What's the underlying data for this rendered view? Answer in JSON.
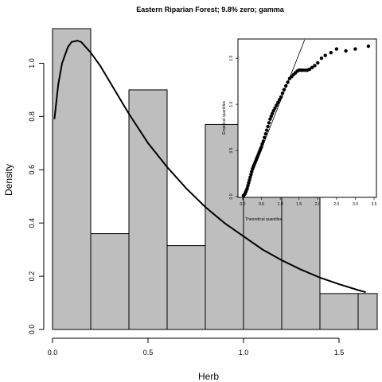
{
  "chart_data": [
    {
      "type": "bar",
      "subtype": "histogram",
      "title": "Eastern Riparian Forest; 9.8% zero; gamma",
      "xlabel": "Herb",
      "ylabel": "Density",
      "bins": [
        {
          "x0": 0.0,
          "x1": 0.2,
          "density": 1.13
        },
        {
          "x0": 0.2,
          "x1": 0.4,
          "density": 0.36
        },
        {
          "x0": 0.4,
          "x1": 0.6,
          "density": 0.9
        },
        {
          "x0": 0.6,
          "x1": 0.8,
          "density": 0.315
        },
        {
          "x0": 0.8,
          "x1": 1.0,
          "density": 0.77
        },
        {
          "x0": 1.0,
          "x1": 1.2,
          "density": 0.585
        },
        {
          "x0": 1.2,
          "x1": 1.4,
          "density": 0.68
        },
        {
          "x0": 1.4,
          "x1": 1.6,
          "density": 0.135
        },
        {
          "x0": 1.6,
          "x1": 1.8,
          "density": 0.135
        }
      ],
      "bar_color": "#bebebe",
      "xticks": [
        "0.0",
        "0.5",
        "1.0",
        "1.5"
      ],
      "xtick_values": [
        0.0,
        0.5,
        1.0,
        1.5
      ],
      "yticks": [
        "0.0",
        "0.2",
        "0.4",
        "0.6",
        "0.8",
        "1.0"
      ],
      "ytick_values": [
        0.0,
        0.2,
        0.4,
        0.6,
        0.8,
        1.0
      ],
      "xlim": [
        0.0,
        1.7
      ],
      "ylim": [
        0.0,
        1.13
      ],
      "density_curve": {
        "x": [
          0.01,
          0.03,
          0.05,
          0.08,
          0.1,
          0.13,
          0.15,
          0.2,
          0.25,
          0.3,
          0.35,
          0.4,
          0.5,
          0.6,
          0.7,
          0.8,
          0.9,
          1.0,
          1.1,
          1.2,
          1.3,
          1.4,
          1.5,
          1.6,
          1.64
        ],
        "y": [
          0.79,
          0.92,
          1.0,
          1.06,
          1.08,
          1.085,
          1.08,
          1.04,
          0.99,
          0.93,
          0.87,
          0.81,
          0.7,
          0.61,
          0.53,
          0.46,
          0.4,
          0.35,
          0.3,
          0.26,
          0.225,
          0.195,
          0.17,
          0.148,
          0.14
        ]
      }
    },
    {
      "type": "scatter",
      "subtype": "qq-plot",
      "xlabel": "Theoretical quantiles",
      "ylabel": "Empirical quantiles",
      "xticks": [
        "0.0",
        "0.5",
        "1.0",
        "1.5",
        "2.0",
        "2.5",
        "3.0",
        "3.5"
      ],
      "xtick_values": [
        0.0,
        0.5,
        1.0,
        1.5,
        2.0,
        2.5,
        3.0,
        3.5
      ],
      "yticks": [
        "0.0",
        "0.5",
        "1.0",
        "1.5"
      ],
      "ytick_values": [
        0.0,
        0.5,
        1.0,
        1.5
      ],
      "xlim": [
        -0.05,
        3.5
      ],
      "ylim": [
        -0.02,
        1.7
      ],
      "reference_line": {
        "x": [
          0.0,
          1.65
        ],
        "y": [
          0.0,
          1.7
        ]
      },
      "x": [
        0.02,
        0.04,
        0.06,
        0.08,
        0.1,
        0.12,
        0.14,
        0.16,
        0.18,
        0.2,
        0.22,
        0.24,
        0.26,
        0.28,
        0.3,
        0.32,
        0.34,
        0.36,
        0.38,
        0.4,
        0.42,
        0.44,
        0.46,
        0.48,
        0.5,
        0.52,
        0.55,
        0.58,
        0.61,
        0.64,
        0.67,
        0.7,
        0.73,
        0.76,
        0.79,
        0.82,
        0.86,
        0.9,
        0.94,
        0.98,
        1.02,
        1.06,
        1.1,
        1.15,
        1.2,
        1.25,
        1.3,
        1.35,
        1.4,
        1.45,
        1.5,
        1.55,
        1.6,
        1.66,
        1.72,
        1.78,
        1.85,
        1.92,
        2.0,
        2.1,
        2.2,
        2.35,
        2.5,
        2.75,
        3.0,
        3.35
      ],
      "y": [
        0.01,
        0.02,
        0.03,
        0.05,
        0.07,
        0.09,
        0.12,
        0.15,
        0.18,
        0.21,
        0.24,
        0.27,
        0.3,
        0.32,
        0.34,
        0.36,
        0.38,
        0.4,
        0.42,
        0.44,
        0.46,
        0.48,
        0.5,
        0.52,
        0.54,
        0.57,
        0.6,
        0.64,
        0.68,
        0.72,
        0.76,
        0.8,
        0.84,
        0.87,
        0.9,
        0.93,
        0.96,
        0.99,
        1.02,
        1.05,
        1.08,
        1.12,
        1.16,
        1.2,
        1.24,
        1.28,
        1.3,
        1.32,
        1.34,
        1.36,
        1.37,
        1.37,
        1.37,
        1.37,
        1.37,
        1.38,
        1.4,
        1.42,
        1.45,
        1.5,
        1.53,
        1.56,
        1.6,
        1.58,
        1.6,
        1.63
      ],
      "point_color": "#000000"
    }
  ]
}
